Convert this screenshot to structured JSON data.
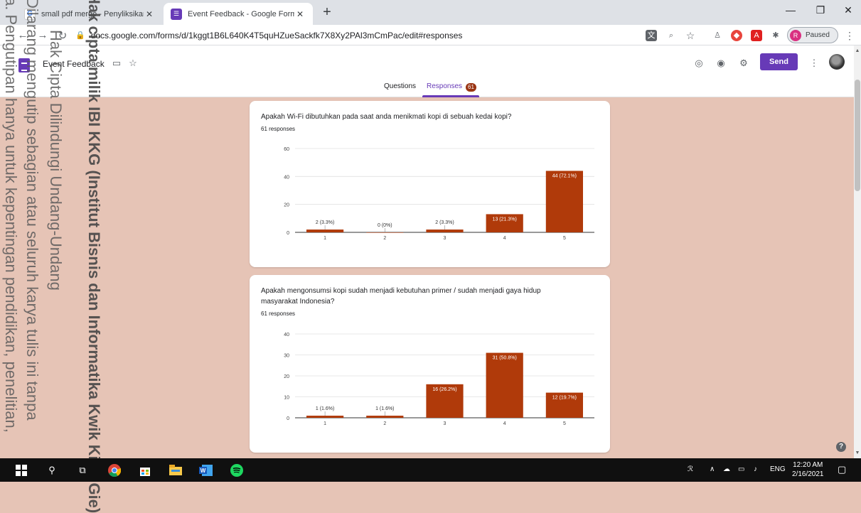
{
  "browser": {
    "tabs": [
      {
        "title": "small pdf merge - Penyliksikan G",
        "active": false
      },
      {
        "title": "Event Feedback - Google Forms",
        "active": true
      }
    ],
    "url": "docs.google.com/forms/d/1kggt1B6L640K4T5quHZueSackfk7X8Xy2PAl3mCmPac/edit#responses",
    "profile_initial": "R",
    "profile_status": "Paused"
  },
  "form": {
    "title": "Event Feedback",
    "send_label": "Send",
    "tab_questions": "Questions",
    "tab_responses": "Responses",
    "responses_count": "61"
  },
  "chart_data": [
    {
      "type": "bar",
      "title": "Apakah Wi-Fi dibutuhkan pada saat anda menikmati kopi di sebuah kedai kopi?",
      "subtitle": "61 responses",
      "categories": [
        "1",
        "2",
        "3",
        "4",
        "5"
      ],
      "values": [
        2,
        0,
        2,
        13,
        44
      ],
      "data_labels": [
        "2 (3.3%)",
        "0 (0%)",
        "2 (3.3%)",
        "13 (21.3%)",
        "44 (72.1%)"
      ],
      "yticks": [
        0,
        20,
        40,
        60
      ],
      "ylim": [
        0,
        60
      ],
      "bar_color": "#b03a0a",
      "grid": true
    },
    {
      "type": "bar",
      "title": "Apakah mengonsumsi kopi sudah menjadi kebutuhan primer / sudah menjadi gaya hidup masyarakat Indonesia?",
      "subtitle": "61 responses",
      "categories": [
        "1",
        "2",
        "3",
        "4",
        "5"
      ],
      "values": [
        1,
        1,
        16,
        31,
        12
      ],
      "data_labels": [
        "1 (1.6%)",
        "1 (1.6%)",
        "16 (26.2%)",
        "31 (50.8%)",
        "12 (19.7%)"
      ],
      "yticks": [
        0,
        10,
        20,
        30,
        40
      ],
      "ylim": [
        0,
        40
      ],
      "bar_color": "#b03a0a",
      "grid": true
    }
  ],
  "watermark": {
    "line1": "Hak Cipta Dilindungi Undang-Undang",
    "line2": "Dilarang mengutip sebagian atau seluruh karya tulis ini tanpa",
    "line3": "a. Pengutipan hanya untuk kepentingan pendidikan, penelitian,",
    "line4": "Hak cipta milik IBI KKG (Institut Bisnis dan Informatika Kwik Kian Gie)"
  },
  "taskbar": {
    "language": "ENG",
    "time": "12:20 AM",
    "date": "2/16/2021"
  },
  "colors": {
    "accent": "#673ab7",
    "page_bg": "#e6c4b6",
    "bar": "#b03a0a"
  }
}
